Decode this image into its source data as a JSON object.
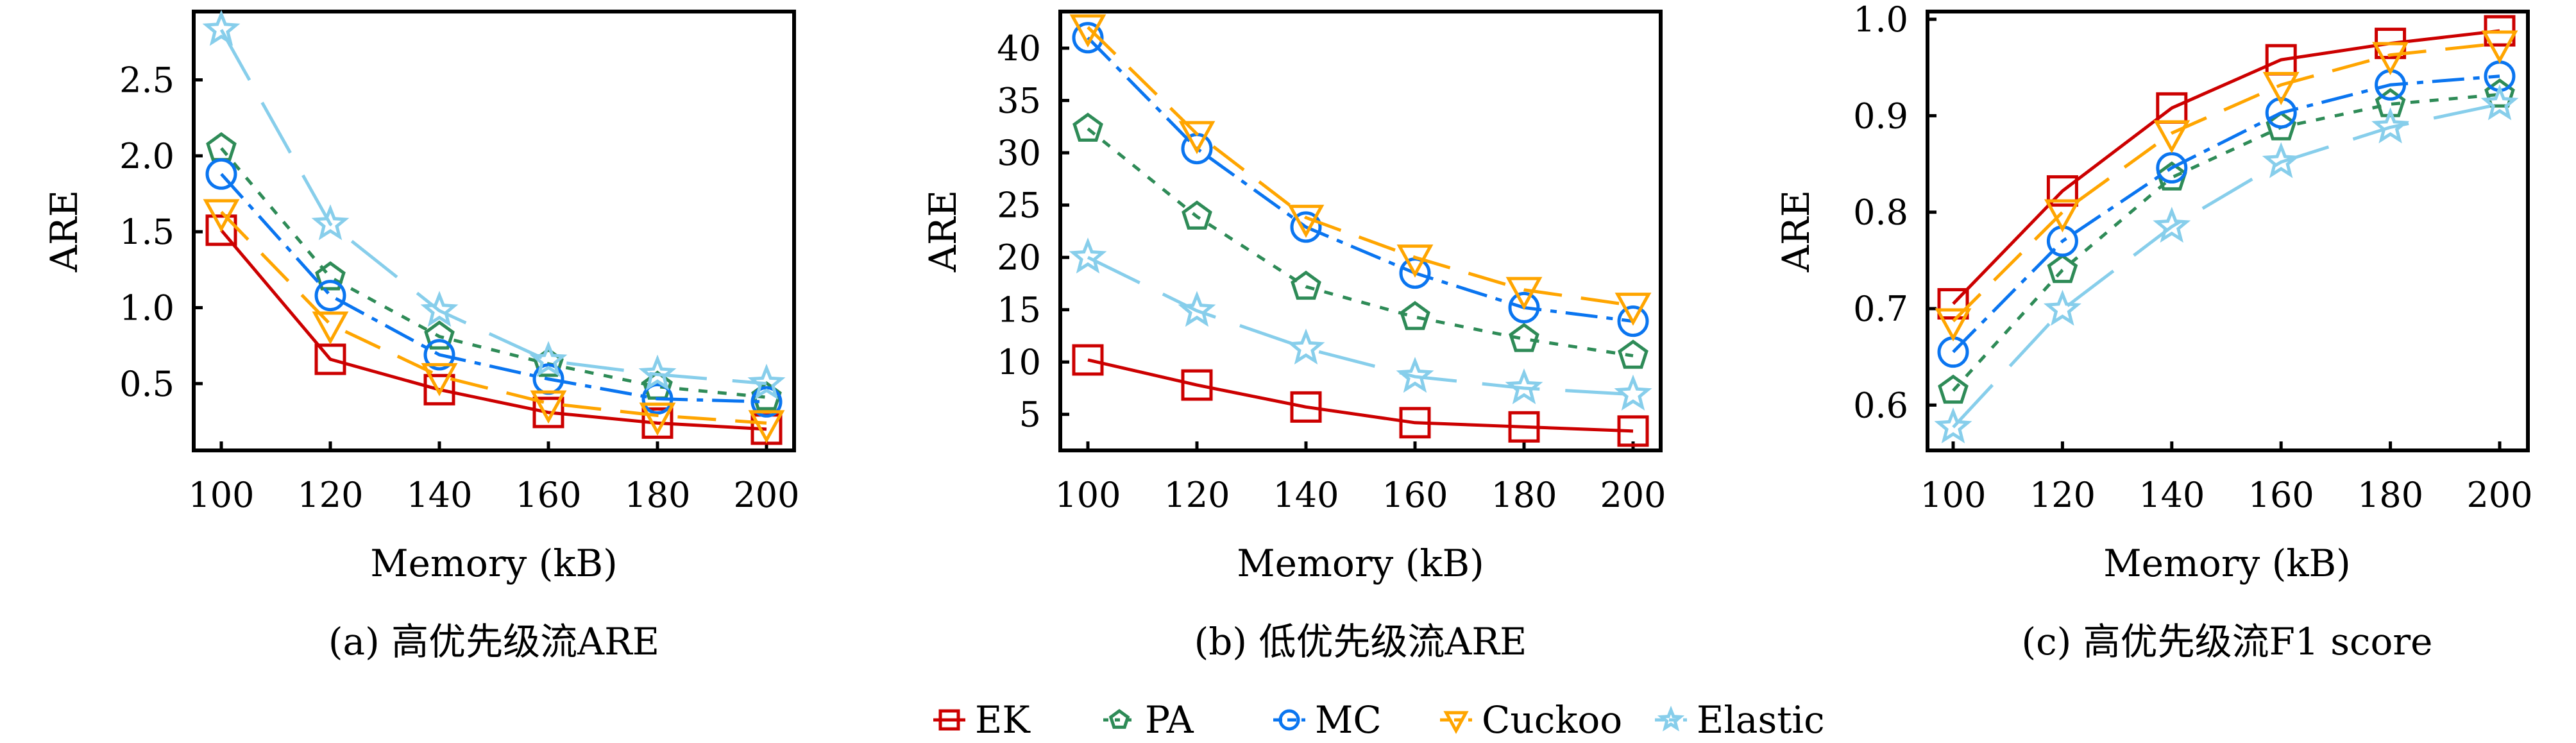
{
  "legend": [
    {
      "name": "EK",
      "color": "#cc0000",
      "marker": "square",
      "dash": "solid"
    },
    {
      "name": "PA",
      "color": "#2e8b57",
      "marker": "pentagon",
      "dash": "dotted"
    },
    {
      "name": "MC",
      "color": "#0a75f0",
      "marker": "circle",
      "dash": "dashdot"
    },
    {
      "name": "Cuckoo",
      "color": "#ffa500",
      "marker": "triangle-down",
      "dash": "dashed"
    },
    {
      "name": "Elastic",
      "color": "#87ceeb",
      "marker": "star",
      "dash": "longdash"
    }
  ],
  "chart_data": [
    {
      "type": "line",
      "caption": "(a) 高优先级流ARE",
      "xlabel": "Memory (kB)",
      "ylabel": "ARE",
      "x": [
        100,
        120,
        140,
        160,
        180,
        200
      ],
      "x_ticks": [
        "100",
        "120",
        "140",
        "160",
        "180",
        "200"
      ],
      "y_ticks": [
        "0.5",
        "1.0",
        "1.5",
        "2.0",
        "2.5"
      ],
      "y_tick_values": [
        0.5,
        1.0,
        1.5,
        2.0,
        2.5
      ],
      "ylim": [
        0.06,
        2.95
      ],
      "xlim": [
        95,
        205
      ],
      "grid": false,
      "series": [
        {
          "name": "EK",
          "values": [
            1.51,
            0.66,
            0.46,
            0.31,
            0.24,
            0.2
          ]
        },
        {
          "name": "PA",
          "values": [
            2.05,
            1.2,
            0.81,
            0.63,
            0.48,
            0.41
          ]
        },
        {
          "name": "MC",
          "values": [
            1.88,
            1.08,
            0.69,
            0.53,
            0.4,
            0.38
          ]
        },
        {
          "name": "Cuckoo",
          "values": [
            1.63,
            0.89,
            0.55,
            0.37,
            0.29,
            0.24
          ]
        },
        {
          "name": "Elastic",
          "values": [
            2.83,
            1.55,
            0.98,
            0.65,
            0.56,
            0.5
          ]
        }
      ]
    },
    {
      "type": "line",
      "caption": "(b) 低优先级流ARE",
      "xlabel": "Memory (kB)",
      "ylabel": "ARE",
      "x": [
        100,
        120,
        140,
        160,
        180,
        200
      ],
      "x_ticks": [
        "100",
        "120",
        "140",
        "160",
        "180",
        "200"
      ],
      "y_ticks": [
        "5",
        "10",
        "15",
        "20",
        "25",
        "30",
        "35",
        "40"
      ],
      "y_tick_values": [
        5,
        10,
        15,
        20,
        25,
        30,
        35,
        40
      ],
      "ylim": [
        1.55,
        43.5
      ],
      "xlim": [
        95,
        205
      ],
      "grid": false,
      "series": [
        {
          "name": "EK",
          "values": [
            10.2,
            7.8,
            5.7,
            4.2,
            3.8,
            3.4
          ]
        },
        {
          "name": "PA",
          "values": [
            32.3,
            23.9,
            17.2,
            14.3,
            12.2,
            10.6
          ]
        },
        {
          "name": "MC",
          "values": [
            41.0,
            30.4,
            22.9,
            18.5,
            15.2,
            13.9
          ]
        },
        {
          "name": "Cuckoo",
          "values": [
            42.0,
            31.8,
            23.8,
            20.0,
            16.9,
            15.4
          ]
        },
        {
          "name": "Elastic",
          "values": [
            20.0,
            14.9,
            11.3,
            8.6,
            7.5,
            6.9
          ]
        }
      ]
    },
    {
      "type": "line",
      "caption": "(c) 高优先级流F1 score",
      "xlabel": "Memory (kB)",
      "ylabel": "ARE",
      "x": [
        100,
        120,
        140,
        160,
        180,
        200
      ],
      "x_ticks": [
        "100",
        "120",
        "140",
        "160",
        "180",
        "200"
      ],
      "y_ticks": [
        "0.6",
        "0.7",
        "0.8",
        "0.9",
        "1.0"
      ],
      "y_tick_values": [
        0.6,
        0.7,
        0.8,
        0.9,
        1.0
      ],
      "ylim": [
        0.553,
        1.008
      ],
      "xlim": [
        95,
        205
      ],
      "grid": false,
      "series": [
        {
          "name": "EK",
          "values": [
            0.705,
            0.822,
            0.908,
            0.958,
            0.975,
            0.988
          ]
        },
        {
          "name": "PA",
          "values": [
            0.615,
            0.74,
            0.836,
            0.888,
            0.912,
            0.922
          ]
        },
        {
          "name": "MC",
          "values": [
            0.655,
            0.77,
            0.846,
            0.903,
            0.932,
            0.941
          ]
        },
        {
          "name": "Cuckoo",
          "values": [
            0.687,
            0.8,
            0.882,
            0.932,
            0.963,
            0.975
          ]
        },
        {
          "name": "Elastic",
          "values": [
            0.577,
            0.699,
            0.785,
            0.852,
            0.888,
            0.912
          ]
        }
      ]
    }
  ]
}
